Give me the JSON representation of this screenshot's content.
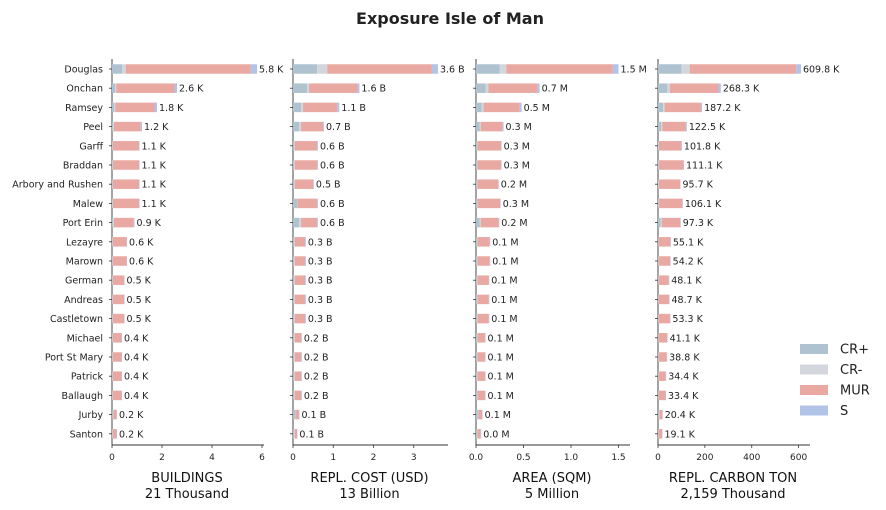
{
  "title": "Exposure Isle of Man",
  "chart_data": {
    "type": "bar",
    "orientation": "horizontal",
    "stacked": true,
    "categories": [
      "Douglas",
      "Onchan",
      "Ramsey",
      "Peel",
      "Garff",
      "Braddan",
      "Arbory and Rushen",
      "Malew",
      "Port Erin",
      "Lezayre",
      "Marown",
      "German",
      "Andreas",
      "Castletown",
      "Michael",
      "Port St Mary",
      "Patrick",
      "Ballaugh",
      "Jurby",
      "Santon"
    ],
    "legend": {
      "position": "right",
      "entries": [
        {
          "name": "CR+",
          "color": "#aec3cf"
        },
        {
          "name": "CR-",
          "color": "#d3d6dc"
        },
        {
          "name": "MUR",
          "color": "#e9a8a1"
        },
        {
          "name": "S",
          "color": "#b2c3e8"
        }
      ]
    },
    "panels": [
      {
        "xlabel": "BUILDINGS",
        "total_label": "21 Thousand",
        "xlim": [
          0,
          6
        ],
        "xticks": [
          "0",
          "2",
          "4",
          "6"
        ],
        "cr_plus": [
          0.4,
          0.12,
          0.08,
          0.05,
          0.02,
          0.03,
          0.02,
          0.03,
          0.05,
          0.02,
          0.02,
          0.02,
          0.02,
          0.02,
          0.02,
          0.02,
          0.02,
          0.02,
          0.04,
          0.02
        ],
        "cr_minus": [
          0.15,
          0.05,
          0.05,
          0.02,
          0.01,
          0.01,
          0.01,
          0.01,
          0.02,
          0.01,
          0.01,
          0.01,
          0.01,
          0.01,
          0.01,
          0.01,
          0.01,
          0.01,
          0.01,
          0.01
        ],
        "mur": [
          5.0,
          2.33,
          1.57,
          1.08,
          1.05,
          1.04,
          1.05,
          1.04,
          0.8,
          0.55,
          0.55,
          0.45,
          0.45,
          0.45,
          0.35,
          0.35,
          0.35,
          0.35,
          0.14,
          0.15
        ],
        "s": [
          0.25,
          0.1,
          0.1,
          0.05,
          0.02,
          0.02,
          0.02,
          0.02,
          0.03,
          0.02,
          0.02,
          0.02,
          0.02,
          0.02,
          0.02,
          0.02,
          0.02,
          0.02,
          0.01,
          0.02
        ],
        "value_labels": [
          "5.8 K",
          "2.6 K",
          "1.8 K",
          "1.2 K",
          "1.1 K",
          "1.1 K",
          "1.1 K",
          "1.1 K",
          "0.9 K",
          "0.6 K",
          "0.6 K",
          "0.5 K",
          "0.5 K",
          "0.5 K",
          "0.4 K",
          "0.4 K",
          "0.4 K",
          "0.4 K",
          "0.2 K",
          "0.2 K"
        ]
      },
      {
        "xlabel": "REPL. COST (USD)",
        "total_label": "13 Billion",
        "xlim": [
          0,
          3.8
        ],
        "xticks": [
          "0",
          "1",
          "2",
          "3"
        ],
        "cr_plus": [
          0.6,
          0.35,
          0.2,
          0.15,
          0.03,
          0.03,
          0.03,
          0.1,
          0.15,
          0.03,
          0.03,
          0.03,
          0.03,
          0.03,
          0.03,
          0.03,
          0.03,
          0.03,
          0.05,
          0.03
        ],
        "cr_minus": [
          0.25,
          0.05,
          0.05,
          0.05,
          0.01,
          0.01,
          0.01,
          0.01,
          0.05,
          0.01,
          0.01,
          0.01,
          0.01,
          0.01,
          0.01,
          0.01,
          0.01,
          0.01,
          0.01,
          0.01
        ],
        "mur": [
          2.6,
          1.2,
          0.85,
          0.55,
          0.56,
          0.56,
          0.46,
          0.49,
          0.4,
          0.26,
          0.26,
          0.26,
          0.26,
          0.26,
          0.16,
          0.16,
          0.16,
          0.16,
          0.09,
          0.06
        ],
        "s": [
          0.15,
          0.05,
          0.05,
          0.02,
          0.02,
          0.02,
          0.02,
          0.02,
          0.02,
          0.02,
          0.02,
          0.02,
          0.02,
          0.02,
          0.02,
          0.02,
          0.02,
          0.02,
          0.01,
          0.01
        ],
        "value_labels": [
          "3.6 B",
          "1.6 B",
          "1.1 B",
          "0.7 B",
          "0.6 B",
          "0.6 B",
          "0.5 B",
          "0.6 B",
          "0.6 B",
          "0.3 B",
          "0.3 B",
          "0.3 B",
          "0.3 B",
          "0.3 B",
          "0.2 B",
          "0.2 B",
          "0.2 B",
          "0.2 B",
          "0.1 B",
          "0.1 B"
        ]
      },
      {
        "xlabel": "AREA (SQM)",
        "total_label": "5 Million",
        "xlim": [
          0,
          1.6
        ],
        "xticks": [
          "0.0",
          "0.5",
          "1.0",
          "1.5"
        ],
        "cr_plus": [
          0.25,
          0.1,
          0.06,
          0.04,
          0.01,
          0.01,
          0.01,
          0.01,
          0.04,
          0.01,
          0.01,
          0.01,
          0.01,
          0.01,
          0.01,
          0.01,
          0.01,
          0.01,
          0.02,
          0.01
        ],
        "cr_minus": [
          0.07,
          0.03,
          0.02,
          0.01,
          0.005,
          0.005,
          0.005,
          0.005,
          0.01,
          0.005,
          0.005,
          0.005,
          0.005,
          0.005,
          0.005,
          0.005,
          0.005,
          0.005,
          0.005,
          0.005
        ],
        "mur": [
          1.12,
          0.52,
          0.38,
          0.23,
          0.25,
          0.25,
          0.22,
          0.24,
          0.19,
          0.13,
          0.13,
          0.12,
          0.12,
          0.12,
          0.08,
          0.08,
          0.08,
          0.08,
          0.04,
          0.035
        ],
        "s": [
          0.06,
          0.02,
          0.02,
          0.01,
          0.005,
          0.005,
          0.005,
          0.005,
          0.005,
          0.005,
          0.005,
          0.005,
          0.005,
          0.005,
          0.005,
          0.005,
          0.005,
          0.005,
          0.005,
          0.005
        ],
        "value_labels": [
          "1.5 M",
          "0.7 M",
          "0.5 M",
          "0.3 M",
          "0.3 M",
          "0.3 M",
          "0.2 M",
          "0.3 M",
          "0.2 M",
          "0.1 M",
          "0.1 M",
          "0.1 M",
          "0.1 M",
          "0.1 M",
          "0.1 M",
          "0.1 M",
          "0.1 M",
          "0.1 M",
          "0.1 M",
          "0.0 M"
        ]
      },
      {
        "xlabel": "REPL. CARBON TON",
        "total_label": "2,159 Thousand",
        "xlim": [
          0,
          640
        ],
        "xticks": [
          "0",
          "200",
          "400",
          "600"
        ],
        "cr_plus": [
          100,
          40,
          22,
          14,
          3,
          3,
          3,
          3,
          12,
          2,
          2,
          2,
          2,
          2,
          2,
          2,
          2,
          2,
          5,
          2
        ],
        "cr_minus": [
          35,
          10,
          6,
          4,
          1,
          1,
          1,
          1,
          4,
          1,
          1,
          1,
          1,
          1,
          1,
          1,
          1,
          1,
          1,
          1
        ],
        "mur": [
          455,
          208,
          155,
          101,
          96,
          105,
          90,
          100,
          78,
          50,
          49,
          43,
          44,
          48,
          36,
          34,
          30,
          29,
          13,
          14
        ],
        "s": [
          20,
          10,
          5,
          4,
          2,
          2,
          2,
          2,
          3,
          2,
          2,
          2,
          2,
          2,
          2,
          2,
          2,
          2,
          1,
          2
        ],
        "value_labels": [
          "609.8 K",
          "268.3 K",
          "187.2 K",
          "122.5 K",
          "101.8 K",
          "111.1 K",
          "95.7 K",
          "106.1 K",
          "97.3 K",
          "55.1 K",
          "54.2 K",
          "48.1 K",
          "48.7 K",
          "53.3 K",
          "41.1 K",
          "38.8 K",
          "34.4 K",
          "33.4 K",
          "20.4 K",
          "19.1 K"
        ]
      }
    ]
  }
}
